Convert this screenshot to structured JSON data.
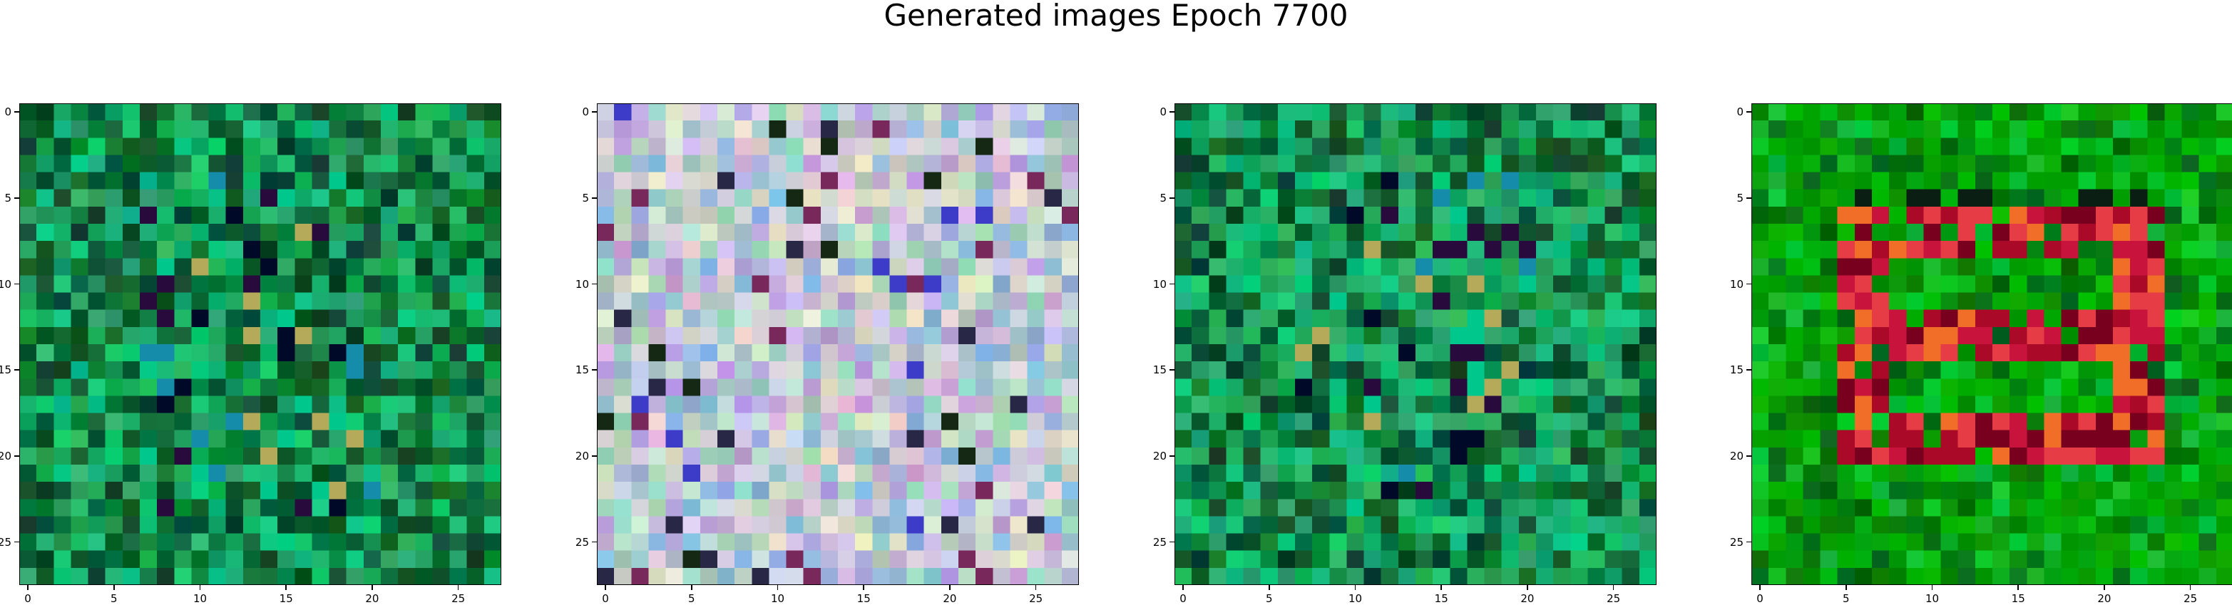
{
  "title": "Generated images Epoch 7700",
  "grid_size": 28,
  "axis": {
    "x_ticks": [
      "0",
      "5",
      "10",
      "15",
      "20",
      "25"
    ],
    "y_ticks": [
      "0",
      "5",
      "10",
      "15",
      "20",
      "25"
    ]
  },
  "panels": [
    {
      "name": "panel-1",
      "style": "green-noise",
      "palette": [
        "#0b7a3a",
        "#1aa05a",
        "#0d5f2f",
        "#2ab06a",
        "#0a4a2a",
        "#14c07a"
      ]
    },
    {
      "name": "panel-2",
      "style": "pastel-noise",
      "palette": [
        "#c8d8cc",
        "#b9a6d8",
        "#d7c9e6",
        "#9fd0c0",
        "#e2e0d2",
        "#8fb8d8"
      ]
    },
    {
      "name": "panel-3",
      "style": "green-noise",
      "palette": [
        "#0b7a3a",
        "#1aa05a",
        "#0d5f2f",
        "#2ab06a",
        "#0a4a2a",
        "#14c07a"
      ]
    },
    {
      "name": "panel-4",
      "style": "green-red-shape",
      "palette": [
        "#00a000",
        "#00b000",
        "#008f00",
        "#0fbf2f",
        "#006f10"
      ]
    }
  ]
}
